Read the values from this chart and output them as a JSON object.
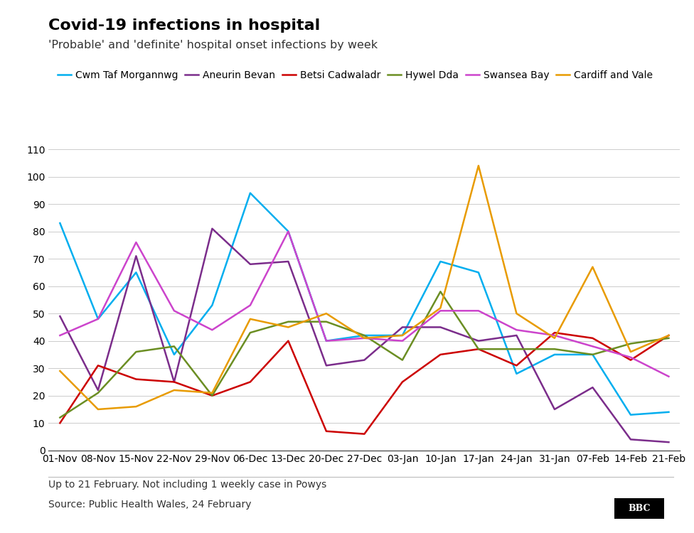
{
  "title": "Covid-19 infections in hospital",
  "subtitle": "'Probable' and 'definite' hospital onset infections by week",
  "footnote1": "Up to 21 February. Not including 1 weekly case in Powys",
  "footnote2": "Source: Public Health Wales, 24 February",
  "x_labels": [
    "01-Nov",
    "08-Nov",
    "15-Nov",
    "22-Nov",
    "29-Nov",
    "06-Dec",
    "13-Dec",
    "20-Dec",
    "27-Dec",
    "03-Jan",
    "10-Jan",
    "17-Jan",
    "24-Jan",
    "31-Jan",
    "07-Feb",
    "14-Feb",
    "21-Feb"
  ],
  "series_order": [
    "Cwm Taf Morgannwg",
    "Aneurin Bevan",
    "Betsi Cadwaladr",
    "Hywel Dda",
    "Swansea Bay",
    "Cardiff and Vale"
  ],
  "series": {
    "Cwm Taf Morgannwg": {
      "color": "#00AEEF",
      "data": [
        83,
        48,
        65,
        35,
        53,
        94,
        80,
        40,
        42,
        42,
        69,
        65,
        28,
        35,
        35,
        13,
        14
      ]
    },
    "Aneurin Bevan": {
      "color": "#7B2D8B",
      "data": [
        49,
        22,
        71,
        25,
        81,
        68,
        69,
        31,
        33,
        45,
        45,
        40,
        42,
        15,
        23,
        4,
        3
      ]
    },
    "Betsi Cadwaladr": {
      "color": "#CC0000",
      "data": [
        10,
        31,
        26,
        25,
        20,
        25,
        40,
        7,
        6,
        25,
        35,
        37,
        31,
        43,
        41,
        33,
        42
      ]
    },
    "Hywel Dda": {
      "color": "#6B8E23",
      "data": [
        12,
        21,
        36,
        38,
        20,
        43,
        47,
        47,
        42,
        33,
        58,
        37,
        37,
        37,
        35,
        39,
        41
      ]
    },
    "Swansea Bay": {
      "color": "#CC44CC",
      "data": [
        42,
        48,
        76,
        51,
        44,
        53,
        80,
        40,
        41,
        40,
        51,
        51,
        44,
        42,
        38,
        34,
        27
      ]
    },
    "Cardiff and Vale": {
      "color": "#E89B00",
      "data": [
        29,
        15,
        16,
        22,
        21,
        48,
        45,
        50,
        41,
        42,
        52,
        104,
        50,
        41,
        67,
        36,
        42
      ]
    }
  },
  "ylim": [
    0,
    110
  ],
  "yticks": [
    0,
    10,
    20,
    30,
    40,
    50,
    60,
    70,
    80,
    90,
    100,
    110
  ],
  "bgcolor": "#FFFFFF",
  "line_width": 1.8,
  "title_fontsize": 16,
  "subtitle_fontsize": 11.5,
  "tick_fontsize": 10,
  "legend_fontsize": 10,
  "footnote_fontsize": 10
}
